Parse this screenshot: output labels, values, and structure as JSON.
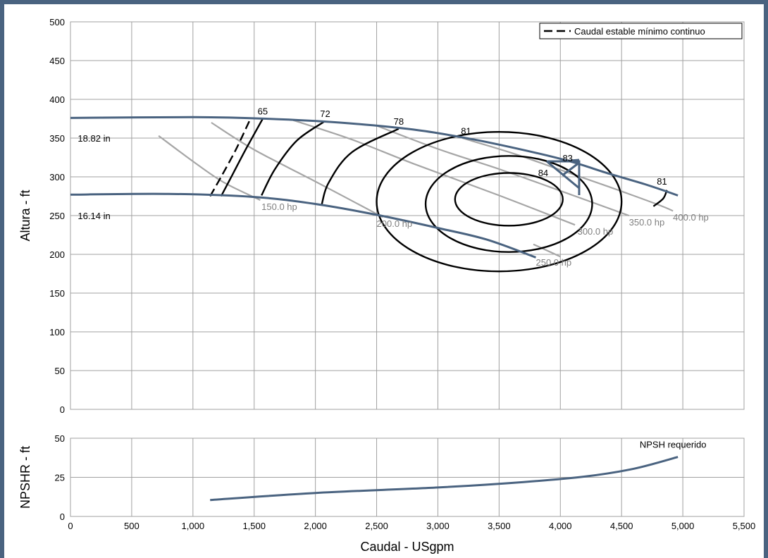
{
  "chart_data": [
    {
      "type": "line",
      "title": "",
      "xlabel": "Caudal - USgpm",
      "ylabel": "Altura - ft",
      "xlim": [
        0,
        5500
      ],
      "ylim": [
        0,
        500
      ],
      "x_ticks": [
        "0",
        "500",
        "1,000",
        "1,500",
        "2,000",
        "2,500",
        "3,000",
        "3,500",
        "4,000",
        "4,500",
        "5,000",
        "5,500"
      ],
      "y_ticks": [
        "0",
        "50",
        "100",
        "150",
        "200",
        "250",
        "300",
        "350",
        "400",
        "450",
        "500"
      ],
      "grid": true,
      "legend": {
        "position": "top-right",
        "entries": [
          "Caudal estable mínimo continuo"
        ]
      },
      "colors": {
        "head": "#4a6380",
        "efficiency": "#000000",
        "power": "#a6a6a6",
        "frame": "#4a6380"
      },
      "impeller_curves": [
        {
          "label": "18.82 in",
          "points": [
            [
              0,
              376
            ],
            [
              1000,
              377
            ],
            [
              1600,
              375
            ],
            [
              2200,
              370
            ],
            [
              2800,
              361
            ],
            [
              3300,
              348
            ],
            [
              3800,
              331
            ],
            [
              4100,
              319
            ],
            [
              4400,
              304
            ],
            [
              4700,
              290
            ],
            [
              4960,
              276
            ]
          ]
        },
        {
          "label": "16.14 in",
          "points": [
            [
              0,
              277
            ],
            [
              800,
              278
            ],
            [
              1500,
              274
            ],
            [
              2000,
              265
            ],
            [
              2500,
              251
            ],
            [
              3000,
              234
            ],
            [
              3400,
              219
            ],
            [
              3800,
              196
            ]
          ]
        }
      ],
      "efficiency_contours": [
        {
          "label": "65",
          "type": "arc",
          "points": [
            [
              1230,
              275
            ],
            [
              1330,
              305
            ],
            [
              1440,
              338
            ],
            [
              1570,
              375
            ]
          ]
        },
        {
          "label": "72",
          "type": "arc",
          "points": [
            [
              1560,
              276
            ],
            [
              1670,
              310
            ],
            [
              1850,
              347
            ],
            [
              2080,
              372
            ]
          ]
        },
        {
          "label": "78",
          "type": "arc",
          "points": [
            [
              2050,
              263
            ],
            [
              2110,
              293
            ],
            [
              2300,
              332
            ],
            [
              2680,
              362
            ]
          ]
        },
        {
          "label": "81",
          "type": "ellipse",
          "cx": 3500,
          "cy": 268,
          "rx": 1000,
          "ry": 90,
          "label_point": [
            3230,
            355
          ]
        },
        {
          "label": "83",
          "type": "ellipse",
          "cx": 3580,
          "cy": 265,
          "rx": 680,
          "ry": 62,
          "label_point": [
            4060,
            320
          ]
        },
        {
          "label": "84",
          "type": "ellipse",
          "cx": 3580,
          "cy": 271,
          "rx": 440,
          "ry": 34,
          "label_point": [
            3860,
            301
          ]
        },
        {
          "label": "81",
          "type": "arc",
          "points": [
            [
              4760,
              262
            ],
            [
              4840,
              272
            ],
            [
              4870,
              283
            ]
          ],
          "label_point": [
            4830,
            290
          ]
        }
      ],
      "power_curves": [
        {
          "label": "150.0 hp",
          "points": [
            [
              720,
              353
            ],
            [
              1000,
              320
            ],
            [
              1250,
              293
            ],
            [
              1550,
              270
            ]
          ]
        },
        {
          "label": "200.0 hp",
          "points": [
            [
              1150,
              370
            ],
            [
              1500,
              335
            ],
            [
              2000,
              294
            ],
            [
              2550,
              248
            ]
          ]
        },
        {
          "label": "250.0 hp",
          "points": [
            [
              3780,
              213
            ],
            [
              4000,
              197
            ]
          ]
        },
        {
          "label": "300.0 hp",
          "points": [
            [
              1820,
              373
            ],
            [
              2300,
              348
            ],
            [
              2800,
              317
            ],
            [
              3500,
              276
            ],
            [
              4120,
              238
            ]
          ]
        },
        {
          "label": "350.0 hp",
          "points": [
            [
              2500,
              366
            ],
            [
              3000,
              336
            ],
            [
              3500,
              310
            ],
            [
              4000,
              282
            ],
            [
              4560,
              250
            ]
          ]
        },
        {
          "label": "400.0 hp",
          "points": [
            [
              3200,
              350
            ],
            [
              3600,
              331
            ],
            [
              4000,
              309
            ],
            [
              4400,
              287
            ],
            [
              4800,
              264
            ],
            [
              4920,
              256
            ]
          ]
        }
      ],
      "min_continuous_stable_flow": [
        [
          1140,
          275
        ],
        [
          1230,
          300
        ],
        [
          1350,
          335
        ],
        [
          1470,
          375
        ]
      ],
      "bep_marker": {
        "label": "84",
        "x": 4050,
        "y": 320
      }
    },
    {
      "type": "line",
      "title": "",
      "xlabel": "Caudal - USgpm",
      "ylabel": "NPSHR - ft",
      "xlim": [
        0,
        5500
      ],
      "ylim": [
        0,
        50
      ],
      "x_ticks": [
        "0",
        "500",
        "1,000",
        "1,500",
        "2,000",
        "2,500",
        "3,000",
        "3,500",
        "4,000",
        "4,500",
        "5,000",
        "5,500"
      ],
      "y_ticks": [
        "0",
        "25",
        "50"
      ],
      "grid": true,
      "series": [
        {
          "name": "NPSH requerido",
          "points": [
            [
              1140,
              10.5
            ],
            [
              2000,
              15
            ],
            [
              3000,
              18.5
            ],
            [
              3700,
              22
            ],
            [
              4200,
              25.5
            ],
            [
              4600,
              30.5
            ],
            [
              4960,
              38
            ]
          ]
        }
      ]
    }
  ]
}
